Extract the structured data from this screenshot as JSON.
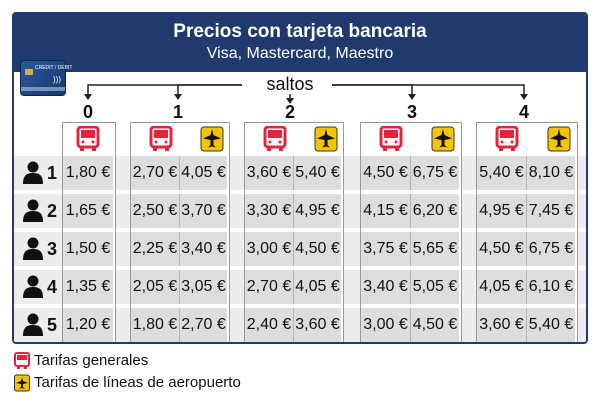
{
  "header": {
    "title": "Precios con tarjeta bancaria",
    "subtitle": "Visa, Mastercard, Maestro"
  },
  "card": {
    "text": "CREDIT / DEBIT",
    "icon": "credit-card-icon"
  },
  "saltos_label": "saltos",
  "zones": [
    "0",
    "1",
    "2",
    "3",
    "4"
  ],
  "icons": {
    "bus": "bus-icon",
    "airport": "airplane-icon",
    "person": "person-icon"
  },
  "colors": {
    "header": "#1f3b6e",
    "bus": "#e5243b",
    "airport": "#f5c400"
  },
  "rows": [
    {
      "n": "1",
      "z0": "1,80 €",
      "z1": [
        "2,70 €",
        "4,05 €"
      ],
      "z2": [
        "3,60 €",
        "5,40 €"
      ],
      "z3": [
        "4,50 €",
        "6,75 €"
      ],
      "z4": [
        "5,40 €",
        "8,10 €"
      ]
    },
    {
      "n": "2",
      "z0": "1,65 €",
      "z1": [
        "2,50 €",
        "3,70 €"
      ],
      "z2": [
        "3,30 €",
        "4,95 €"
      ],
      "z3": [
        "4,15 €",
        "6,20 €"
      ],
      "z4": [
        "4,95 €",
        "7,45 €"
      ]
    },
    {
      "n": "3",
      "z0": "1,50 €",
      "z1": [
        "2,25 €",
        "3,40 €"
      ],
      "z2": [
        "3,00 €",
        "4,50 €"
      ],
      "z3": [
        "3,75 €",
        "5,65 €"
      ],
      "z4": [
        "4,50 €",
        "6,75 €"
      ]
    },
    {
      "n": "4",
      "z0": "1,35 €",
      "z1": [
        "2,05 €",
        "3,05 €"
      ],
      "z2": [
        "2,70 €",
        "4,05 €"
      ],
      "z3": [
        "3,40 €",
        "5,05 €"
      ],
      "z4": [
        "4,05 €",
        "6,10 €"
      ]
    },
    {
      "n": "5",
      "z0": "1,20 €",
      "z1": [
        "1,80 €",
        "2,70 €"
      ],
      "z2": [
        "2,40 €",
        "3,60 €"
      ],
      "z3": [
        "3,00 €",
        "4,50 €"
      ],
      "z4": [
        "3,60 €",
        "5,40 €"
      ]
    }
  ],
  "legend": {
    "general": "Tarifas generales",
    "airport": "Tarifas de líneas de aeropuerto"
  }
}
